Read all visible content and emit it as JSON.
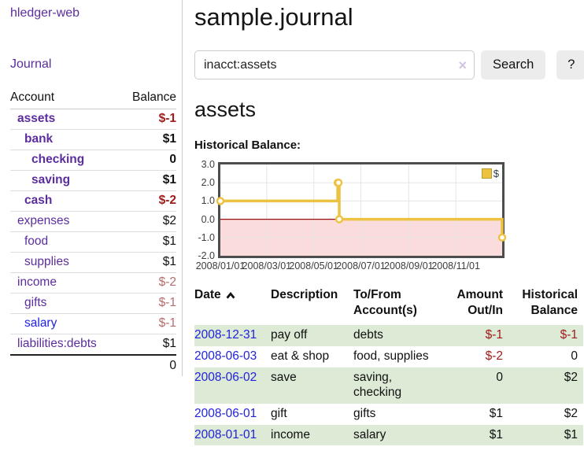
{
  "sidebar": {
    "brand": "hledger-web",
    "journal_link": "Journal",
    "accounts": {
      "header_account": "Account",
      "header_balance": "Balance",
      "rows": [
        {
          "name": "assets",
          "balance": "$-1"
        },
        {
          "name": "bank",
          "balance": "$1"
        },
        {
          "name": "checking",
          "balance": "0"
        },
        {
          "name": "saving",
          "balance": "$1"
        },
        {
          "name": "cash",
          "balance": "$-2"
        },
        {
          "name": "expenses",
          "balance": "$2"
        },
        {
          "name": "food",
          "balance": "$1"
        },
        {
          "name": "supplies",
          "balance": "$1"
        },
        {
          "name": "income",
          "balance": "$-2"
        },
        {
          "name": "gifts",
          "balance": "$-1"
        },
        {
          "name": "salary",
          "balance": "$-1"
        },
        {
          "name": "liabilities:debts",
          "balance": "$1"
        }
      ],
      "total": "0"
    }
  },
  "main": {
    "title": "sample.journal",
    "search": {
      "value": "inacct:assets",
      "clear": "×",
      "search_button": "Search",
      "help_button": "?"
    },
    "account_heading": "assets",
    "chart_heading": "Historical Balance:"
  },
  "chart_data": {
    "type": "line",
    "title": "Historical Balance:",
    "step": true,
    "grid": true,
    "legend_position": "top-right",
    "series": [
      {
        "name": "$",
        "color": "#edc240",
        "points": [
          {
            "x": "2008-01-01",
            "y": 1
          },
          {
            "x": "2008-06-01",
            "y": 2
          },
          {
            "x": "2008-06-02",
            "y": 2
          },
          {
            "x": "2008-06-03",
            "y": 0
          },
          {
            "x": "2008-12-31",
            "y": -1
          }
        ]
      }
    ],
    "ylim": [
      -2,
      3
    ],
    "yticks": [
      3.0,
      2.0,
      1.0,
      0.0,
      -1.0,
      -2.0
    ],
    "xticks": [
      "2008/01/01",
      "2008/03/01",
      "2008/05/01",
      "2008/07/01",
      "2008/09/01",
      "2008/11/01"
    ],
    "xrange": [
      "2008-01-01",
      "2008-12-31"
    ],
    "negative_region_color": "#fbdcdc",
    "zero_line_color": "#991111",
    "grid_color": "#e5e5e5",
    "legend": [
      {
        "label": "$",
        "color": "#edc240"
      }
    ]
  },
  "register": {
    "headers": {
      "date": "Date",
      "description": "Description",
      "tofrom": "To/From Account(s)",
      "amount": "Amount Out/In",
      "balance": "Historical Balance"
    },
    "rows": [
      {
        "date": "2008-12-31",
        "description": "pay off",
        "accounts": "debts",
        "amount": "$-1",
        "balance": "$-1"
      },
      {
        "date": "2008-06-03",
        "description": "eat & shop",
        "accounts": "food, supplies",
        "amount": "$-2",
        "balance": "0"
      },
      {
        "date": "2008-06-02",
        "description": "save",
        "accounts": "saving,\nchecking",
        "amount": "0",
        "balance": "$2"
      },
      {
        "date": "2008-06-01",
        "description": "gift",
        "accounts": "gifts",
        "amount": "$1",
        "balance": "$2"
      },
      {
        "date": "2008-01-01",
        "description": "income",
        "accounts": "salary",
        "amount": "$1",
        "balance": "$1"
      }
    ]
  }
}
